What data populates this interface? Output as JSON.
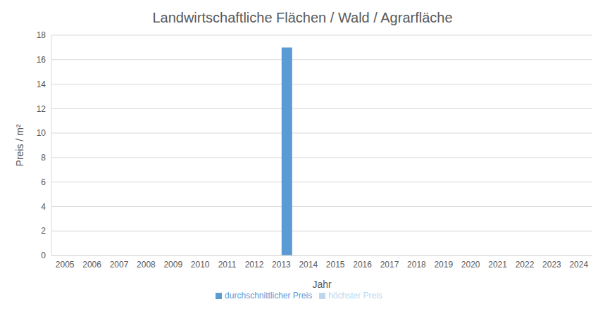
{
  "chart_data": {
    "type": "bar",
    "title": "Landwirtschaftliche Flächen / Wald / Agrarfläche",
    "x_label": "Jahr",
    "y_label": "Preis / m²",
    "categories": [
      "2005",
      "2006",
      "2007",
      "2008",
      "2009",
      "2010",
      "2011",
      "2012",
      "2013",
      "2014",
      "2015",
      "2016",
      "2017",
      "2018",
      "2019",
      "2020",
      "2021",
      "2022",
      "2023",
      "2024"
    ],
    "series": [
      {
        "name": "höchster Preis",
        "color": "#bdd7ee",
        "values": [
          null,
          null,
          null,
          null,
          null,
          null,
          null,
          null,
          null,
          null,
          null,
          null,
          null,
          null,
          null,
          null,
          null,
          null,
          null,
          null
        ]
      },
      {
        "name": "durchschnittlicher Preis",
        "color": "#5b9bd5",
        "values": [
          null,
          null,
          null,
          null,
          null,
          null,
          null,
          null,
          17,
          null,
          null,
          null,
          null,
          null,
          null,
          null,
          null,
          null,
          null,
          null
        ]
      }
    ],
    "ylim": [
      0,
      18
    ],
    "yticks": [
      0,
      2,
      4,
      6,
      8,
      10,
      12,
      14,
      16,
      18
    ],
    "grid": true,
    "legend": "bottom"
  }
}
